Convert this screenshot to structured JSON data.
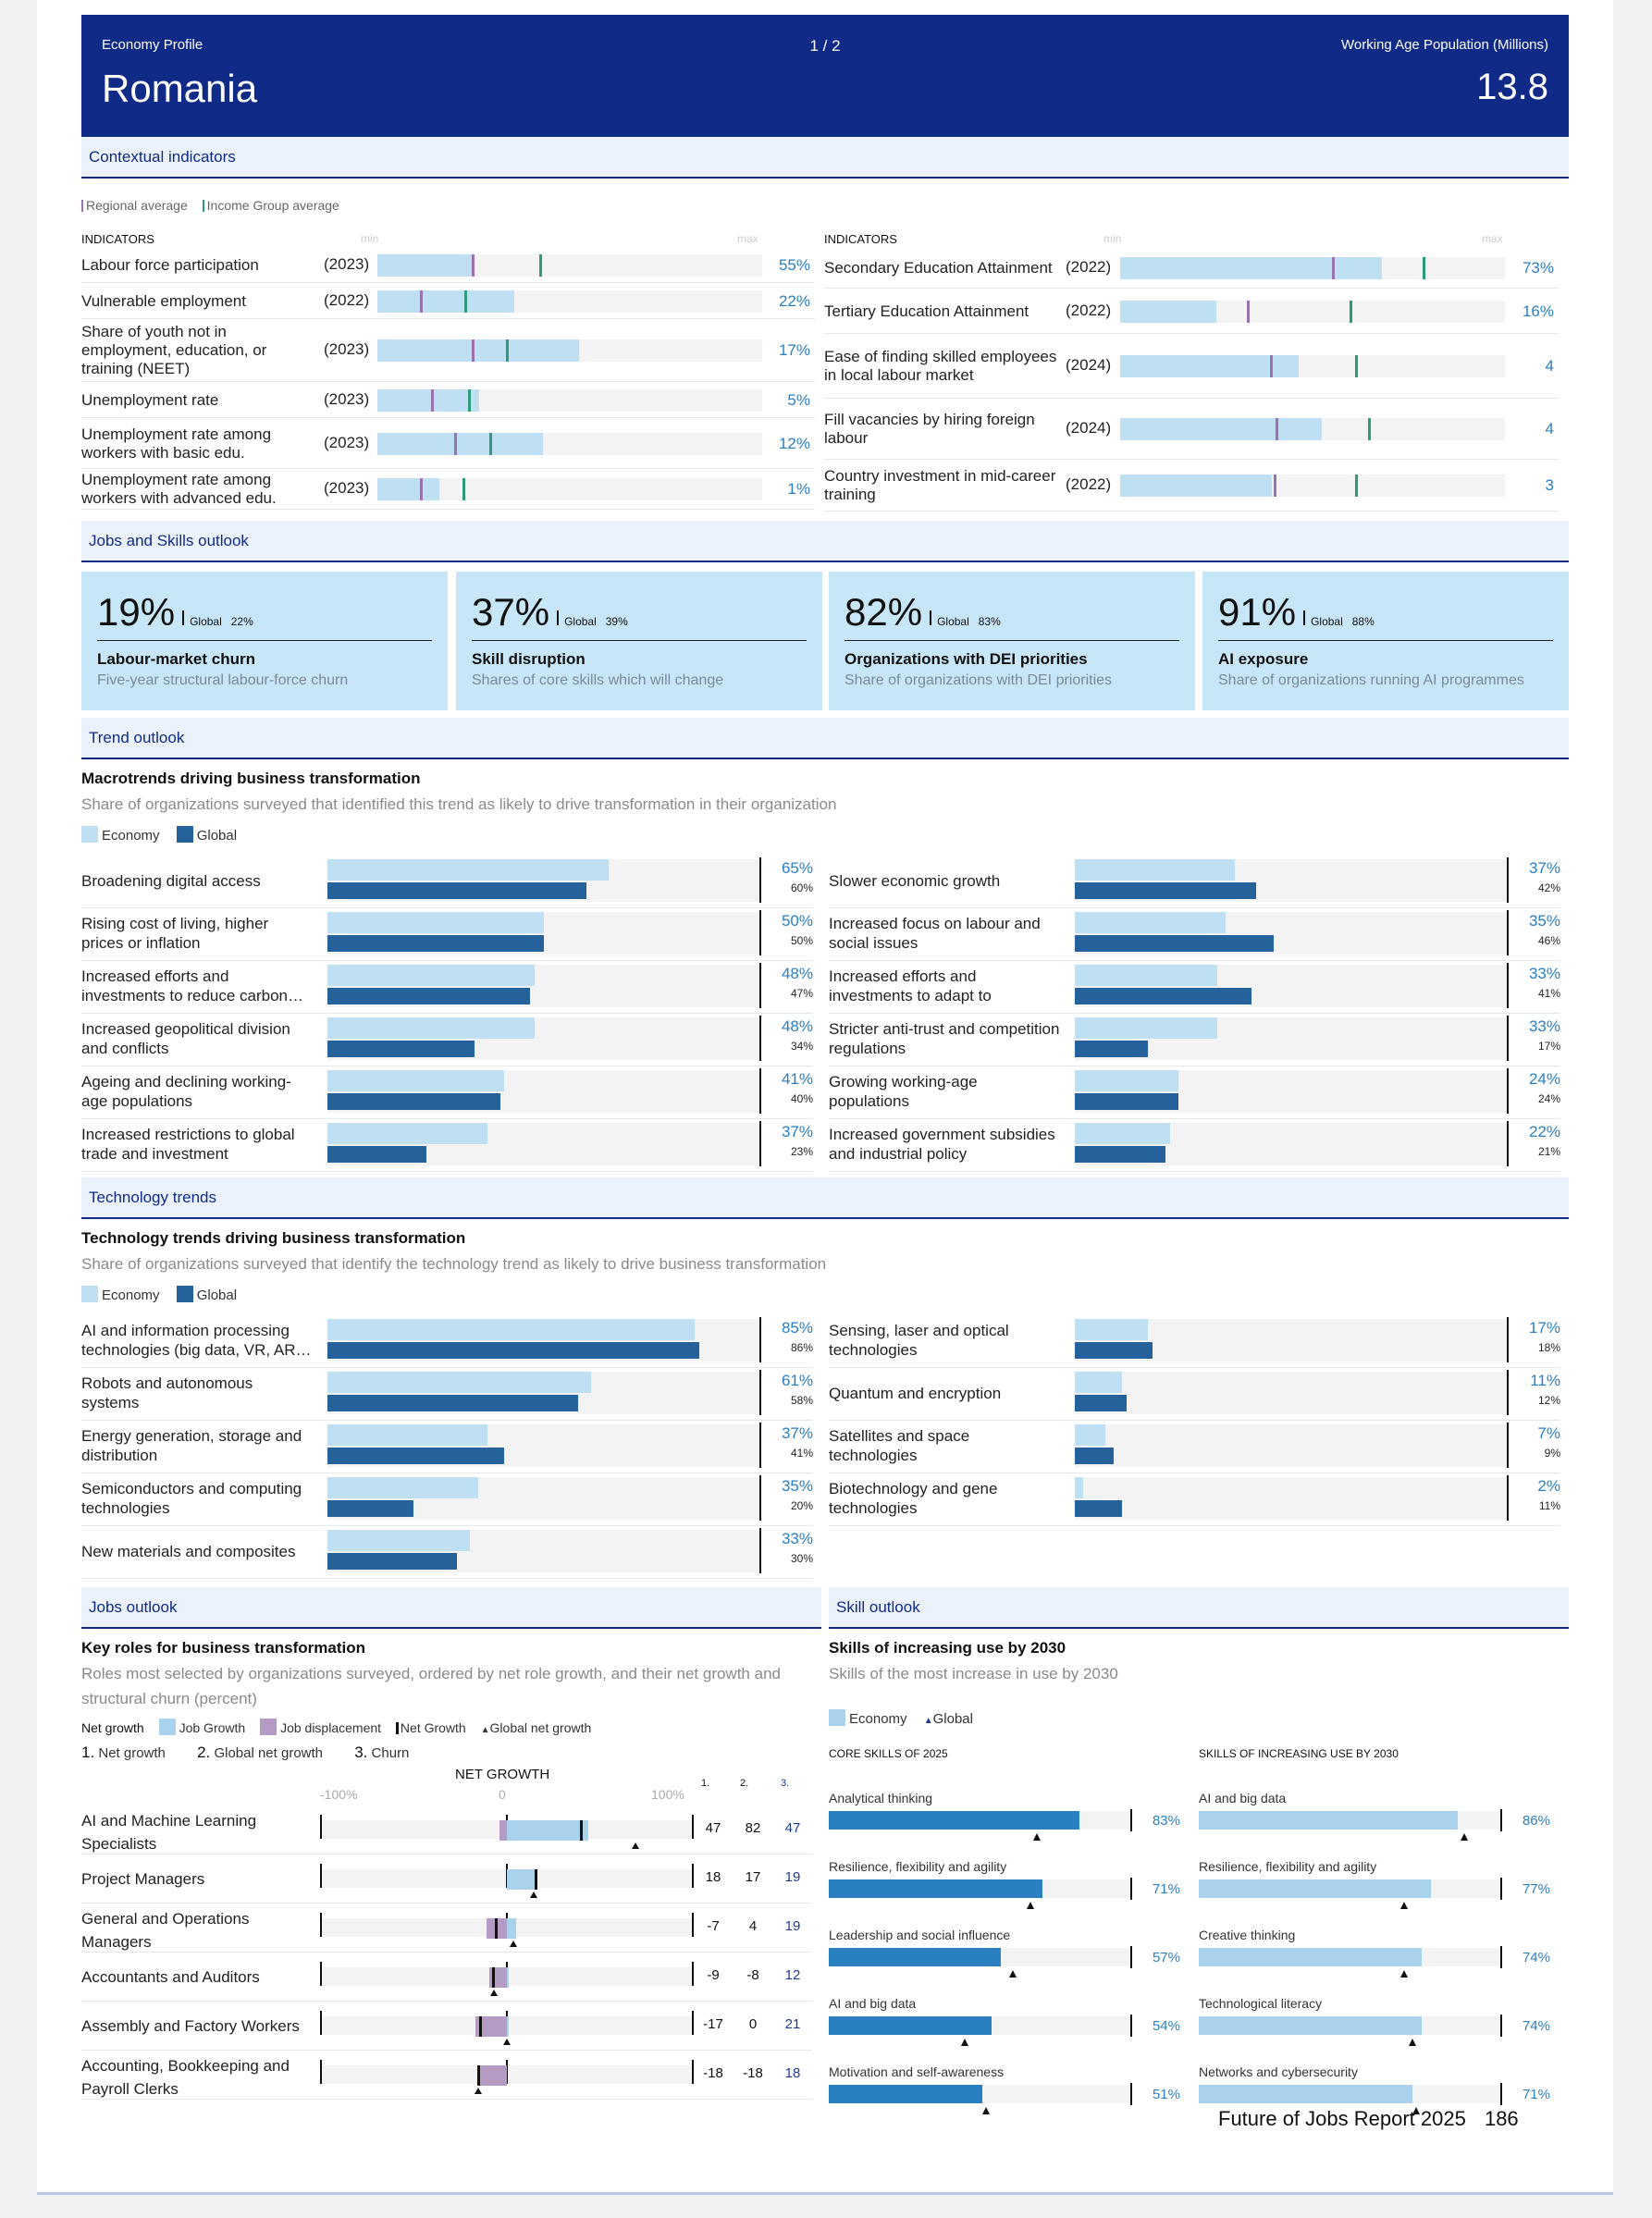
{
  "header": {
    "left_label": "Economy Profile",
    "page": "1 / 2",
    "right_label": "Working Age Population (Millions)",
    "country": "Romania",
    "working_age_population": "13.8"
  },
  "contextual": {
    "title": "Contextual indicators",
    "legend": {
      "regional": "Regional average",
      "income": "Income Group average"
    },
    "col_header": "INDICATORS",
    "min_label": "min",
    "max_label": "max",
    "colors": {
      "regional": "#9b72b0",
      "income": "#2f9a7b",
      "fill": "#bfe0f2"
    },
    "left": [
      {
        "label": "Labour force participation",
        "year": "(2023)",
        "value": "55%",
        "fill": 0.25,
        "regional": 0.245,
        "income": 0.42
      },
      {
        "label": "Vulnerable employment",
        "year": "(2022)",
        "value": "22%",
        "fill": 0.355,
        "regional": 0.11,
        "income": 0.225
      },
      {
        "label": "Share of youth not in employment, education, or training (NEET)",
        "year": "(2023)",
        "value": "17%",
        "fill": 0.525,
        "regional": 0.245,
        "income": 0.335
      },
      {
        "label": "Unemployment rate",
        "year": "(2023)",
        "value": "5%",
        "fill": 0.265,
        "regional": 0.14,
        "income": 0.235
      },
      {
        "label": "Unemployment rate among workers with basic edu.",
        "year": "(2023)",
        "value": "12%",
        "fill": 0.43,
        "regional": 0.2,
        "income": 0.29
      },
      {
        "label": "Unemployment rate among workers with advanced edu.",
        "year": "(2023)",
        "value": "1%",
        "fill": 0.16,
        "regional": 0.11,
        "income": 0.22
      }
    ],
    "right": [
      {
        "label": "Secondary Education Attainment",
        "year": "(2022)",
        "value": "73%",
        "fill": 0.68,
        "regional": 0.55,
        "income": 0.785
      },
      {
        "label": "Tertiary Education Attainment",
        "year": "(2022)",
        "value": "16%",
        "fill": 0.25,
        "regional": 0.33,
        "income": 0.595
      },
      {
        "label": "Ease of finding skilled employees in local labour market",
        "year": "(2024)",
        "value": "4",
        "fill": 0.465,
        "regional": 0.39,
        "income": 0.61
      },
      {
        "label": "Fill vacancies by hiring foreign labour",
        "year": "(2024)",
        "value": "4",
        "fill": 0.525,
        "regional": 0.405,
        "income": 0.645
      },
      {
        "label": "Country investment in mid-career training",
        "year": "(2022)",
        "value": "3",
        "fill": 0.395,
        "regional": 0.4,
        "income": 0.61
      }
    ]
  },
  "jobs_skills": {
    "title": "Jobs and Skills outlook",
    "cards": [
      {
        "value": "19%",
        "global_label": "Global",
        "global": "22%",
        "title": "Labour-market churn",
        "subtitle": "Five-year structural labour-force churn"
      },
      {
        "value": "37%",
        "global_label": "Global",
        "global": "39%",
        "title": "Skill disruption",
        "subtitle": "Shares of core skills which will change"
      },
      {
        "value": "82%",
        "global_label": "Global",
        "global": "83%",
        "title": "Organizations with DEI priorities",
        "subtitle": "Share of organizations with DEI priorities"
      },
      {
        "value": "91%",
        "global_label": "Global",
        "global": "88%",
        "title": "AI exposure",
        "subtitle": "Share of organizations running AI programmes"
      }
    ]
  },
  "trend": {
    "section": "Trend outlook",
    "title": "Macrotrends driving business transformation",
    "subtitle": "Share of organizations surveyed that identified this trend as likely to drive transformation in their organization",
    "legend": {
      "economy": "Economy",
      "global": "Global"
    },
    "colors": {
      "economy": "#bfe0f2",
      "global": "#25619a"
    },
    "left": [
      {
        "label": "Broadening digital access",
        "economy": 65,
        "global": 60,
        "economy_label": "65%",
        "global_label": "60%"
      },
      {
        "label": "Rising cost of living, higher prices or inflation",
        "economy": 50,
        "global": 50,
        "economy_label": "50%",
        "global_label": "50%"
      },
      {
        "label": "Increased efforts and investments to reduce carbon…",
        "economy": 48,
        "global": 47,
        "economy_label": "48%",
        "global_label": "47%"
      },
      {
        "label": "Increased geopolitical division and conflicts",
        "economy": 48,
        "global": 34,
        "economy_label": "48%",
        "global_label": "34%"
      },
      {
        "label": "Ageing and declining working-age populations",
        "economy": 41,
        "global": 40,
        "economy_label": "41%",
        "global_label": "40%"
      },
      {
        "label": "Increased restrictions to global trade and investment",
        "economy": 37,
        "global": 23,
        "economy_label": "37%",
        "global_label": "23%"
      }
    ],
    "right": [
      {
        "label": "Slower economic growth",
        "economy": 37,
        "global": 42,
        "economy_label": "37%",
        "global_label": "42%"
      },
      {
        "label": "Increased focus on labour and social issues",
        "economy": 35,
        "global": 46,
        "economy_label": "35%",
        "global_label": "46%"
      },
      {
        "label": "Increased efforts and investments to adapt to climate…",
        "economy": 33,
        "global": 41,
        "economy_label": "33%",
        "global_label": "41%"
      },
      {
        "label": "Stricter anti-trust and competition regulations",
        "economy": 33,
        "global": 17,
        "economy_label": "33%",
        "global_label": "17%"
      },
      {
        "label": "Growing working-age populations",
        "economy": 24,
        "global": 24,
        "economy_label": "24%",
        "global_label": "24%"
      },
      {
        "label": "Increased government subsidies and industrial policy",
        "economy": 22,
        "global": 21,
        "economy_label": "22%",
        "global_label": "21%"
      }
    ]
  },
  "tech": {
    "section": "Technology trends",
    "title": "Technology trends driving business transformation",
    "subtitle": "Share of organizations surveyed that identify the technology trend as likely to drive business transformation",
    "legend": {
      "economy": "Economy",
      "global": "Global"
    },
    "left": [
      {
        "label": "AI and information processing technologies (big data, VR, AR…",
        "economy": 85,
        "global": 86,
        "economy_label": "85%",
        "global_label": "86%"
      },
      {
        "label": "Robots and autonomous systems",
        "economy": 61,
        "global": 58,
        "economy_label": "61%",
        "global_label": "58%"
      },
      {
        "label": "Energy generation, storage and distribution",
        "economy": 37,
        "global": 41,
        "economy_label": "37%",
        "global_label": "41%"
      },
      {
        "label": "Semiconductors and computing technologies",
        "economy": 35,
        "global": 20,
        "economy_label": "35%",
        "global_label": "20%"
      },
      {
        "label": "New materials and composites",
        "economy": 33,
        "global": 30,
        "economy_label": "33%",
        "global_label": "30%"
      }
    ],
    "right": [
      {
        "label": "Sensing, laser and optical technologies",
        "economy": 17,
        "global": 18,
        "economy_label": "17%",
        "global_label": "18%"
      },
      {
        "label": "Quantum and encryption",
        "economy": 11,
        "global": 12,
        "economy_label": "11%",
        "global_label": "12%"
      },
      {
        "label": "Satellites and space technologies",
        "economy": 7,
        "global": 9,
        "economy_label": "7%",
        "global_label": "9%"
      },
      {
        "label": "Biotechnology and gene technologies",
        "economy": 2,
        "global": 11,
        "economy_label": "2%",
        "global_label": "11%"
      }
    ]
  },
  "jobs": {
    "section": "Jobs outlook",
    "title": "Key roles for business transformation",
    "subtitle": "Roles most selected by organizations surveyed, ordered by net role growth, and their net growth and structural churn (percent)",
    "legend": {
      "net_growth": "Net growth",
      "job_growth": "Job Growth",
      "job_displacement": "Job displacement",
      "net_growth_tick": "Net Growth",
      "global_net_growth": "Global net growth"
    },
    "numbered_legend": {
      "n1": "1.",
      "l1": "Net growth",
      "n2": "2.",
      "l2": "Global net growth",
      "n3": "3.",
      "l3": "Churn"
    },
    "axis": {
      "title": "NET GROWTH",
      "min": "-100%",
      "zero": "0",
      "max": "100%",
      "c1": "1.",
      "c2": "2.",
      "c3": "3."
    },
    "colors": {
      "growth": "#a9d3ec",
      "displacement": "#b39bc4",
      "churn": "#1f3a8a"
    },
    "roles": [
      {
        "label": "AI and Machine Learning Specialists",
        "growth": 52,
        "displacement": -5,
        "net": 47,
        "global": 82,
        "net_label": "47",
        "global_label": "82",
        "churn_label": "47"
      },
      {
        "label": "Project Managers",
        "growth": 19,
        "displacement": 0,
        "net": 18,
        "global": 17,
        "net_label": "18",
        "global_label": "17",
        "churn_label": "19"
      },
      {
        "label": "General and Operations Managers",
        "growth": 6,
        "displacement": -13,
        "net": -7,
        "global": 4,
        "net_label": "-7",
        "global_label": "4",
        "churn_label": "19"
      },
      {
        "label": "Accountants and Auditors",
        "growth": 1,
        "displacement": -11,
        "net": -9,
        "global": -8,
        "net_label": "-9",
        "global_label": "-8",
        "churn_label": "12"
      },
      {
        "label": "Assembly and Factory Workers",
        "growth": 1,
        "displacement": -20,
        "net": -17,
        "global": 0,
        "net_label": "-17",
        "global_label": "0",
        "churn_label": "21"
      },
      {
        "label": "Accounting, Bookkeeping and Payroll Clerks",
        "growth": 0,
        "displacement": -19,
        "net": -18,
        "global": -18,
        "net_label": "-18",
        "global_label": "-18",
        "churn_label": "18"
      }
    ]
  },
  "skills": {
    "section": "Skill outlook",
    "title": "Skills of increasing use by 2030",
    "subtitle": "Skills of the most increase in use by 2030",
    "legend": {
      "economy": "Economy",
      "global": "Global"
    },
    "colors": {
      "core": "#2a7fc1",
      "increasing": "#a9d3ec"
    },
    "core_header": "CORE SKILLS OF 2025",
    "increasing_header": "SKILLS OF INCREASING USE BY 2030",
    "core": [
      {
        "name": "Analytical thinking",
        "value": 83,
        "global": 69,
        "label": "83%"
      },
      {
        "name": "Resilience, flexibility and agility",
        "value": 71,
        "global": 67,
        "label": "71%"
      },
      {
        "name": "Leadership and social influence",
        "value": 57,
        "global": 61,
        "label": "57%"
      },
      {
        "name": "AI and big data",
        "value": 54,
        "global": 45,
        "label": "54%"
      },
      {
        "name": "Motivation and self-awareness",
        "value": 51,
        "global": 52,
        "label": "51%"
      }
    ],
    "increasing": [
      {
        "name": "AI and big data",
        "value": 86,
        "global": 88,
        "label": "86%"
      },
      {
        "name": "Resilience, flexibility and agility",
        "value": 77,
        "global": 68,
        "label": "77%"
      },
      {
        "name": "Creative thinking",
        "value": 74,
        "global": 68,
        "label": "74%"
      },
      {
        "name": "Technological literacy",
        "value": 74,
        "global": 71,
        "label": "74%"
      },
      {
        "name": "Networks and cybersecurity",
        "value": 71,
        "global": 72,
        "label": "71%"
      }
    ]
  },
  "footer": {
    "report": "Future of Jobs Report 2025",
    "page": "186"
  }
}
